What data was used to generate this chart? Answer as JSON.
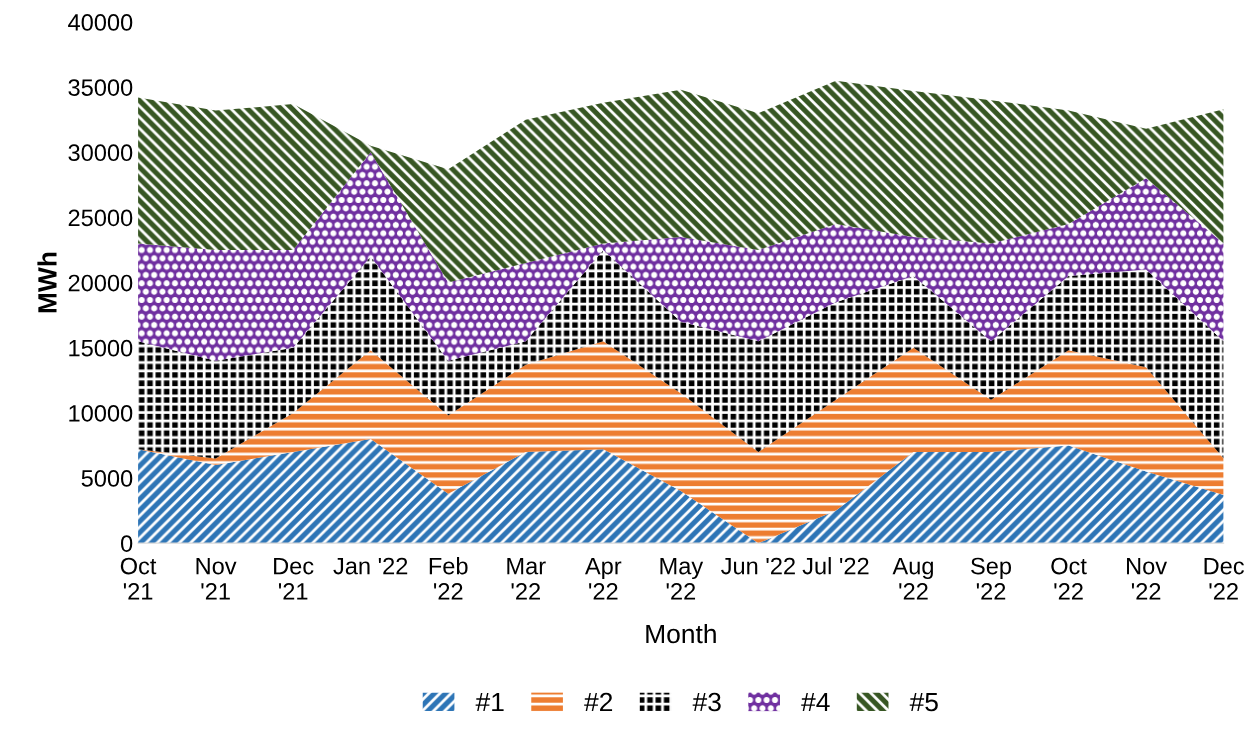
{
  "chart_data": {
    "type": "area",
    "stacked": true,
    "xlabel": "Month",
    "ylabel": "MWh",
    "categories": [
      "Oct\n'21",
      "Nov\n'21",
      "Dec\n'21",
      "Jan '22",
      "Feb\n'22",
      "Mar\n'22",
      "Apr\n'22",
      "May\n'22",
      "Jun '22",
      "Jul '22",
      "Aug\n'22",
      "Sep\n'22",
      "Oct\n'22",
      "Nov\n'22",
      "Dec\n'22"
    ],
    "series": [
      {
        "name": "#1",
        "color": "#2e75b6",
        "values": [
          7200,
          6000,
          7000,
          8000,
          3800,
          7000,
          7200,
          4000,
          0,
          2500,
          7000,
          7000,
          7500,
          5500,
          3700
        ]
      },
      {
        "name": "#2",
        "color": "#ed7d31",
        "values": [
          0,
          500,
          3000,
          6800,
          6000,
          6700,
          8300,
          7500,
          7000,
          8500,
          8000,
          4000,
          7300,
          8000,
          2800
        ]
      },
      {
        "name": "#3",
        "color": "#000000",
        "values": [
          8300,
          7500,
          5000,
          7200,
          4200,
          1800,
          7000,
          5500,
          8500,
          7500,
          5500,
          4500,
          5700,
          7500,
          9000
        ]
      },
      {
        "name": "#4",
        "color": "#7030a0",
        "values": [
          7500,
          8500,
          7500,
          8000,
          6000,
          6000,
          500,
          6500,
          7000,
          6000,
          3000,
          7500,
          4000,
          7000,
          7500
        ]
      },
      {
        "name": "#5",
        "color": "#375623",
        "values": [
          11200,
          10700,
          11200,
          500,
          8700,
          11000,
          10800,
          11300,
          10500,
          11000,
          11200,
          11000,
          8700,
          3800,
          10300
        ]
      }
    ],
    "ylim": [
      0,
      40000
    ],
    "yticks": [
      0,
      5000,
      10000,
      15000,
      20000,
      25000,
      30000,
      35000,
      40000
    ],
    "grid": false,
    "legend": "bottom"
  }
}
